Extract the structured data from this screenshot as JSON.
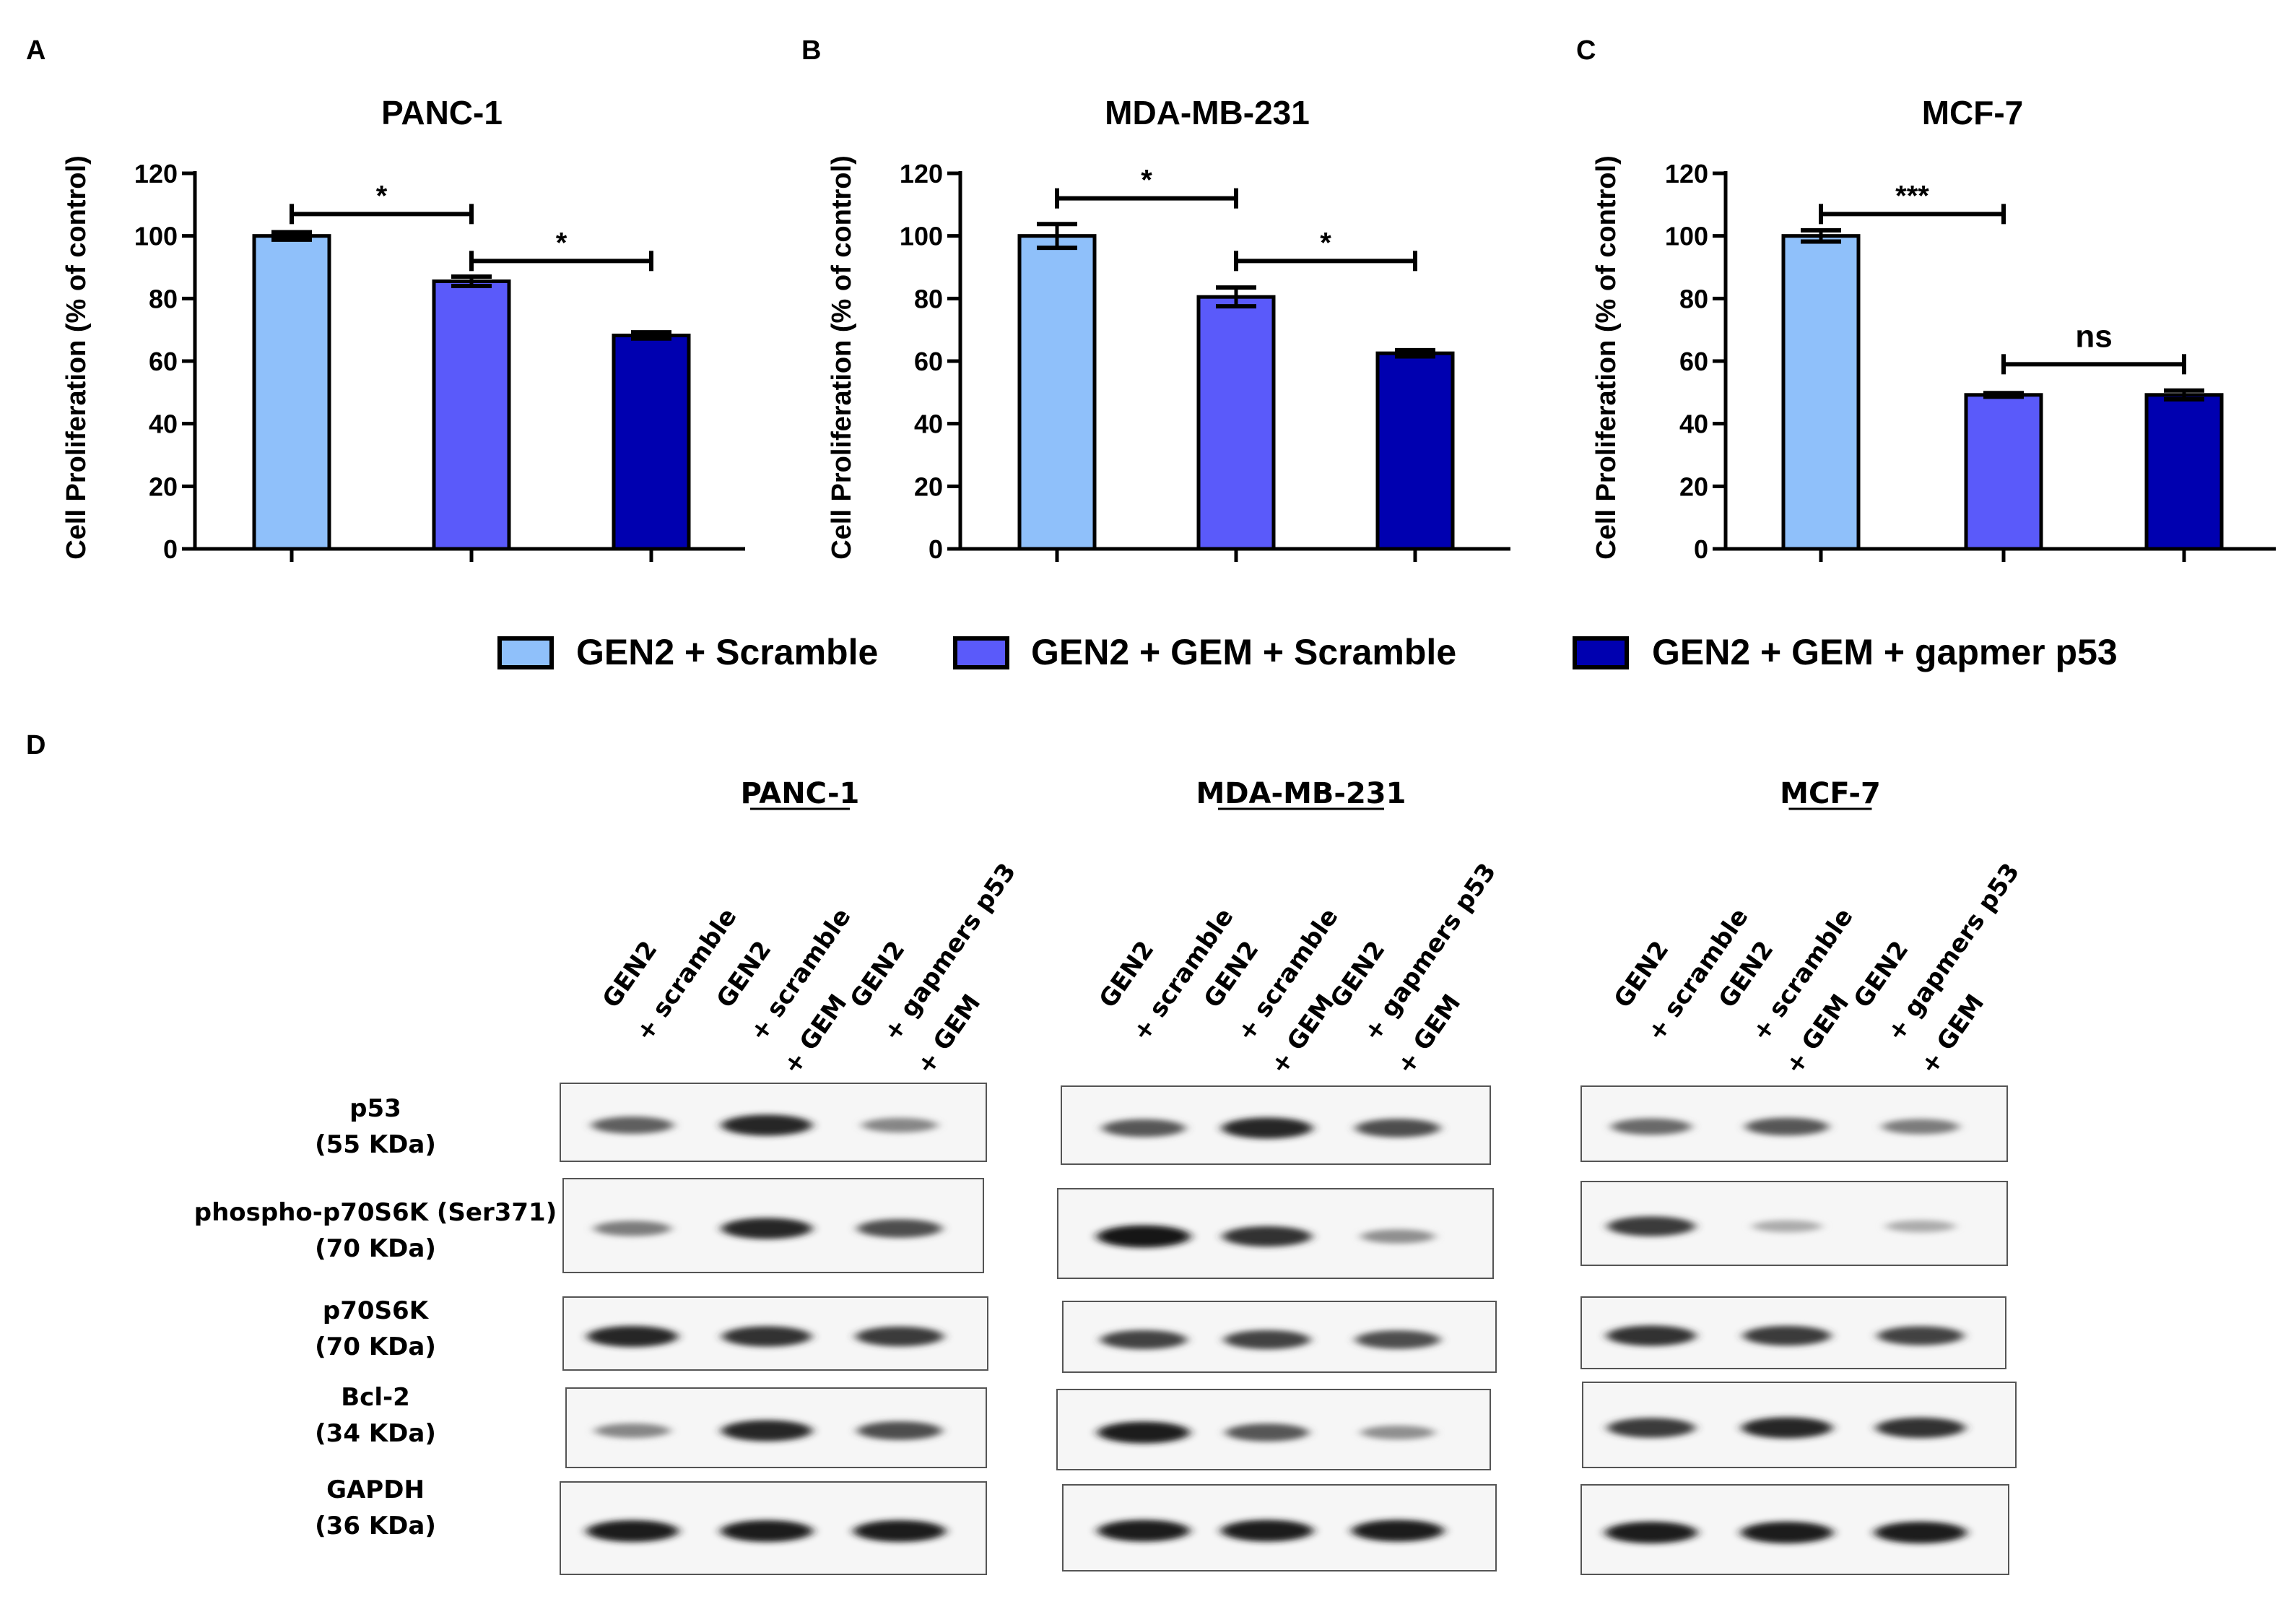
{
  "chart_data": [
    {
      "type": "bar",
      "panel_label": "A",
      "title": "PANC-1",
      "ylabel": "Cell Proliferation (% of control)",
      "ylim": [
        0,
        120
      ],
      "yticks": [
        "0",
        "20",
        "40",
        "60",
        "80",
        "100",
        "120"
      ],
      "categories": [
        "GEN2 + Scramble",
        "GEN2 + GEM + Scramble",
        "GEN2 + GEM + gapmer p53"
      ],
      "values": [
        100,
        85.5,
        68.2
      ],
      "errors": [
        1.2,
        1.5,
        1.0
      ],
      "significance": [
        {
          "from": 0,
          "to": 1,
          "label": "*",
          "y": 107
        },
        {
          "from": 1,
          "to": 2,
          "label": "*",
          "y": 92
        }
      ]
    },
    {
      "type": "bar",
      "panel_label": "B",
      "title": "MDA-MB-231",
      "ylabel": "Cell Proliferation (% of control)",
      "ylim": [
        0,
        120
      ],
      "yticks": [
        "0",
        "20",
        "40",
        "60",
        "80",
        "100",
        "120"
      ],
      "categories": [
        "GEN2 + Scramble",
        "GEN2 + GEM + Scramble",
        "GEN2 + GEM + gapmer p53"
      ],
      "values": [
        100,
        80.5,
        62.5
      ],
      "errors": [
        3.8,
        3.0,
        1.0
      ],
      "significance": [
        {
          "from": 0,
          "to": 1,
          "label": "*",
          "y": 112
        },
        {
          "from": 1,
          "to": 2,
          "label": "*",
          "y": 92
        }
      ]
    },
    {
      "type": "bar",
      "panel_label": "C",
      "title": "MCF-7",
      "ylabel": "Cell Proliferation (% of control)",
      "ylim": [
        0,
        120
      ],
      "yticks": [
        "0",
        "20",
        "40",
        "60",
        "80",
        "100",
        "120"
      ],
      "categories": [
        "GEN2 + Scramble",
        "GEN2 + GEM + Scramble",
        "GEN2 + GEM + gapmer p53"
      ],
      "values": [
        100,
        49.2,
        49.2
      ],
      "errors": [
        1.8,
        0.6,
        1.4
      ],
      "significance": [
        {
          "from": 0,
          "to": 1,
          "label": "***",
          "y": 107
        },
        {
          "from": 1,
          "to": 2,
          "label": "ns",
          "y": 59
        }
      ]
    }
  ],
  "legend": [
    {
      "label": "GEN2 + Scramble",
      "color": "#8fc0fa"
    },
    {
      "label": "GEN2 + GEM + Scramble",
      "color": "#5a5afa"
    },
    {
      "label": "GEN2 + GEM + gapmer p53",
      "color": "#0000b0"
    }
  ],
  "colors": {
    "bar1": "#8fc0fa",
    "bar2": "#5a5afa",
    "bar3": "#0000b0",
    "axis": "#000000"
  },
  "blots": {
    "panel_label": "D",
    "cell_lines": [
      "PANC-1",
      "MDA-MB-231",
      "MCF-7"
    ],
    "lane_labels": [
      {
        "line1": "GEN2",
        "line2": "+ scramble",
        "line3": ""
      },
      {
        "line1": "GEN2",
        "line2": "+ scramble",
        "line3": "+ GEM"
      },
      {
        "line1": "GEN2",
        "line2": "+ gapmers p53",
        "line3": "+ GEM"
      }
    ],
    "proteins": [
      {
        "name": "p53",
        "mw": "(55 KDa)",
        "intensities": [
          [
            0.55,
            0.85,
            0.35
          ],
          [
            0.6,
            0.85,
            0.65
          ],
          [
            0.5,
            0.6,
            0.4
          ]
        ]
      },
      {
        "name": "phospho-p70S6K (Ser371)",
        "mw": "(70 KDa)",
        "intensities": [
          [
            0.4,
            0.85,
            0.65
          ],
          [
            0.95,
            0.8,
            0.3
          ],
          [
            0.75,
            0.15,
            0.15
          ]
        ]
      },
      {
        "name": "p70S6K",
        "mw": "(70 KDa)",
        "intensities": [
          [
            0.85,
            0.8,
            0.75
          ],
          [
            0.7,
            0.7,
            0.65
          ],
          [
            0.8,
            0.75,
            0.7
          ]
        ]
      },
      {
        "name": "Bcl-2",
        "mw": "(34 KDa)",
        "intensities": [
          [
            0.35,
            0.85,
            0.65
          ],
          [
            0.9,
            0.6,
            0.3
          ],
          [
            0.75,
            0.85,
            0.8
          ]
        ]
      },
      {
        "name": "GAPDH",
        "mw": "(36 KDa)",
        "intensities": [
          [
            0.9,
            0.9,
            0.9
          ],
          [
            0.9,
            0.9,
            0.9
          ],
          [
            0.9,
            0.9,
            0.9
          ]
        ]
      }
    ]
  }
}
